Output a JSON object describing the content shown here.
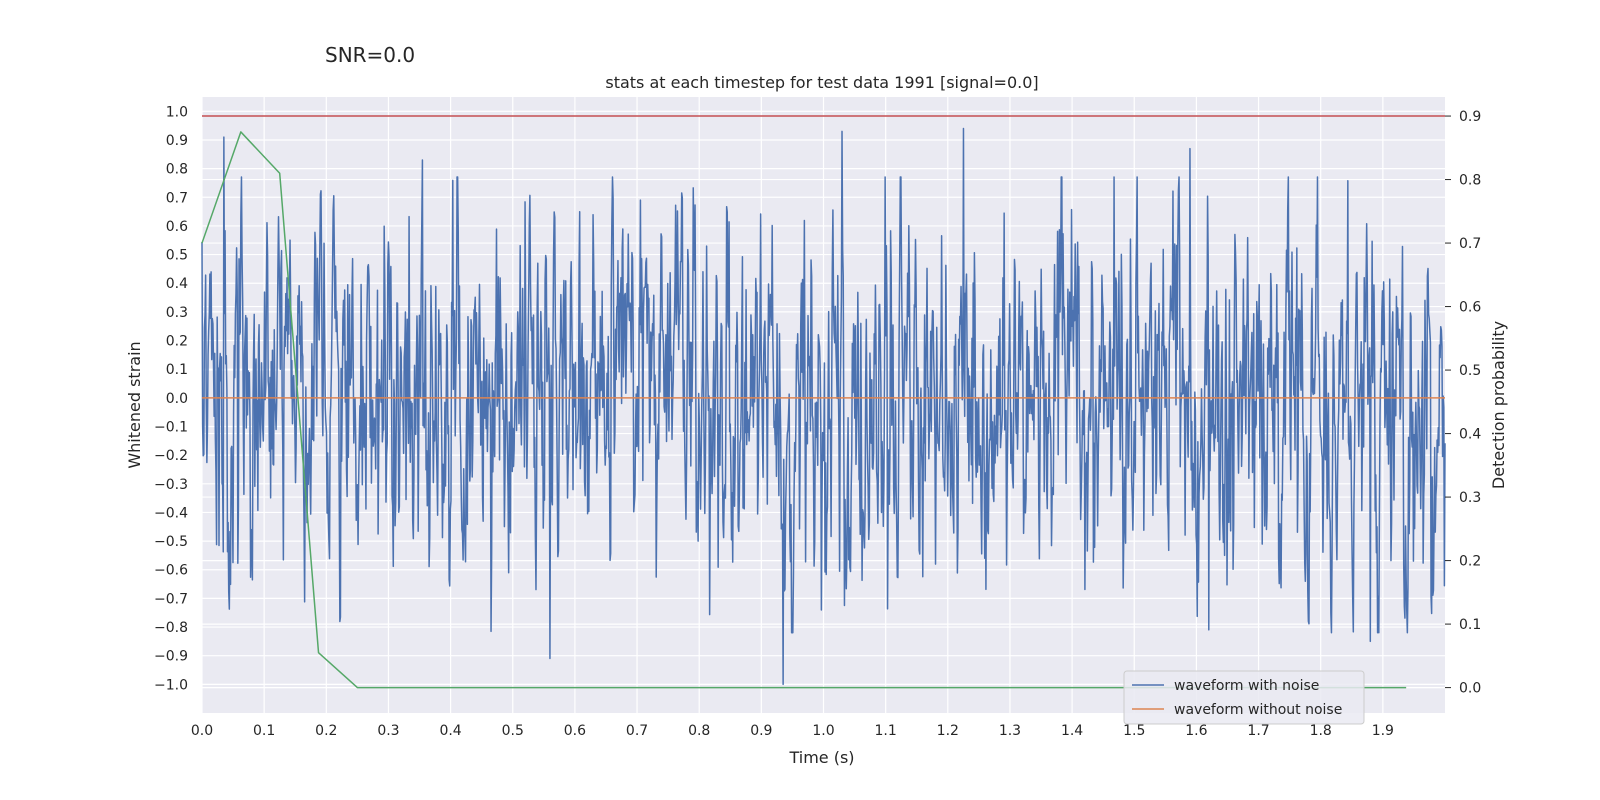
{
  "chart_data": {
    "type": "line",
    "suptitle": "SNR=0.0",
    "title": "stats at each timestep for test data 1991 [signal=0.0]",
    "xlabel": "Time (s)",
    "ylabel": "Whitened strain",
    "y2label": "Detection probability",
    "xlim": [
      0.0,
      2.0
    ],
    "ylim": [
      -1.1,
      1.05
    ],
    "y2lim": [
      -0.04,
      0.93
    ],
    "xticks": [
      0.0,
      0.1,
      0.2,
      0.3,
      0.4,
      0.5,
      0.6,
      0.7,
      0.8,
      0.9,
      1.0,
      1.1,
      1.2,
      1.3,
      1.4,
      1.5,
      1.6,
      1.7,
      1.8,
      1.9
    ],
    "xtick_labels": [
      "0.0",
      "0.1",
      "0.2",
      "0.3",
      "0.4",
      "0.5",
      "0.6",
      "0.7",
      "0.8",
      "0.9",
      "1.0",
      "1.1",
      "1.2",
      "1.3",
      "1.4",
      "1.5",
      "1.6",
      "1.7",
      "1.8",
      "1.9"
    ],
    "yticks": [
      1.0,
      0.9,
      0.8,
      0.7,
      0.6,
      0.5,
      0.4,
      0.3,
      0.2,
      0.1,
      0.0,
      -0.1,
      -0.2,
      -0.3,
      -0.4,
      -0.5,
      -0.6,
      -0.7,
      -0.8,
      -0.9,
      -1.0
    ],
    "ytick_labels": [
      "1.0",
      "0.9",
      "0.8",
      "0.7",
      "0.6",
      "0.5",
      "0.4",
      "0.3",
      "0.2",
      "0.1",
      "0.0",
      "−0.1",
      "−0.2",
      "−0.3",
      "−0.4",
      "−0.5",
      "−0.6",
      "−0.7",
      "−0.8",
      "−0.9",
      "−1.0"
    ],
    "y2ticks": [
      0.9,
      0.8,
      0.7,
      0.6,
      0.5,
      0.4,
      0.3,
      0.2,
      0.1,
      0.0
    ],
    "y2tick_labels": [
      "0.9",
      "0.8",
      "0.7",
      "0.6",
      "0.5",
      "0.4",
      "0.3",
      "0.2",
      "0.1",
      "0.0"
    ],
    "grid": true,
    "legend_position": "bottom-right",
    "series": [
      {
        "name": "waveform with noise",
        "axis": "left",
        "color": "#4c72b0",
        "kind": "noise",
        "x_range": [
          0.0,
          2.0
        ],
        "n_points": 2048,
        "approx_std": 0.3,
        "approx_min": -1.0,
        "approx_max": 0.94,
        "notable_peaks": [
          {
            "x": 0.035,
            "y": 0.91
          },
          {
            "x": 0.355,
            "y": 0.83
          },
          {
            "x": 0.56,
            "y": -0.91
          },
          {
            "x": 0.935,
            "y": -1.0
          },
          {
            "x": 1.03,
            "y": 0.93
          },
          {
            "x": 1.225,
            "y": 0.94
          },
          {
            "x": 1.59,
            "y": 0.87
          },
          {
            "x": 1.62,
            "y": -0.81
          },
          {
            "x": 1.88,
            "y": -0.85
          }
        ]
      },
      {
        "name": "waveform without noise",
        "axis": "left",
        "color": "#dd8452",
        "x": [
          0.0,
          2.0
        ],
        "y": [
          0.0,
          0.0
        ]
      },
      {
        "name": "detection probability",
        "axis": "right",
        "color": "#55a868",
        "show_in_legend": false,
        "x": [
          0.0,
          0.0625,
          0.125,
          0.1875,
          0.25,
          0.3125,
          1.9375
        ],
        "y": [
          0.7,
          0.875,
          0.81,
          0.055,
          0.0,
          0.0,
          0.0
        ]
      },
      {
        "name": "threshold",
        "axis": "right",
        "color": "#c44e52",
        "show_in_legend": false,
        "x": [
          0.0,
          2.0
        ],
        "y": [
          0.9,
          0.9
        ]
      }
    ],
    "legend": [
      "waveform with noise",
      "waveform without noise"
    ]
  }
}
